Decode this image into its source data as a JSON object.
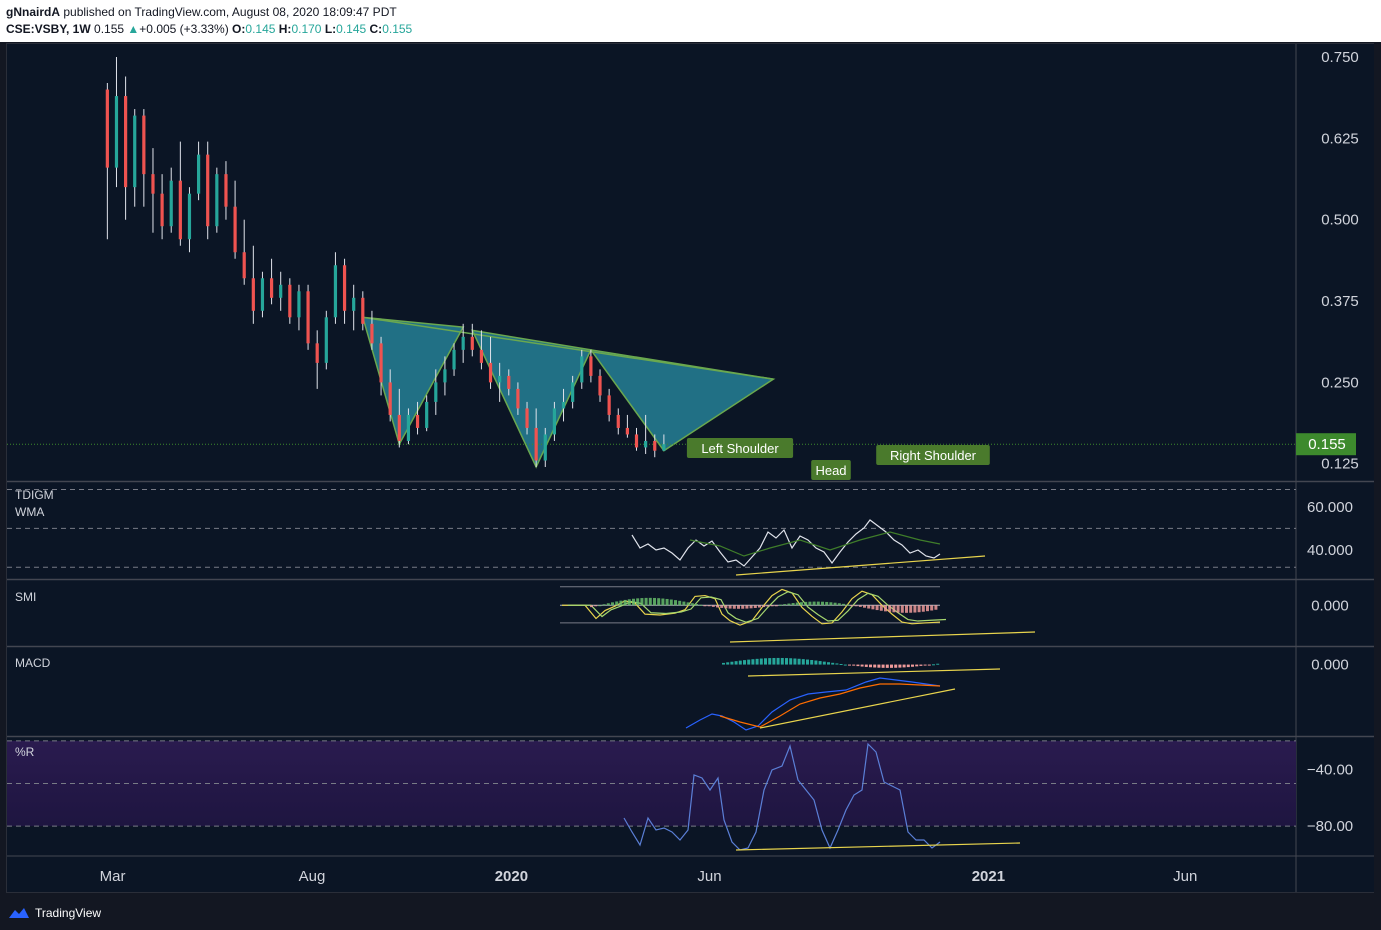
{
  "header": {
    "author": "gNnairdA",
    "published_text": "published on TradingView.com, August 08, 2020 18:09:47 PDT",
    "symbol": "CSE:VSBY, 1W",
    "last": "0.155",
    "change": "+0.005 (+3.33%)",
    "o_label": "O:",
    "o": "0.145",
    "h_label": "H:",
    "h": "0.170",
    "l_label": "L:",
    "l": "0.145",
    "c_label": "C:",
    "c": "0.155"
  },
  "footer": {
    "brand": "TradingView"
  },
  "colors": {
    "up": "#26a69a",
    "down": "#ef5350",
    "pattern_fill": "#2a8fa6",
    "trend": "#e8d44d",
    "label_bg": "#4a7a2c",
    "price_tag": "#3d8a2d"
  },
  "chart_data": {
    "type": "candlestick",
    "x_ticks": [
      {
        "date": "2019-03-01",
        "label": "Mar",
        "bold": false
      },
      {
        "date": "2019-08-01",
        "label": "Aug",
        "bold": false
      },
      {
        "date": "2020-01-01",
        "label": "2020",
        "bold": true
      },
      {
        "date": "2020-06-01",
        "label": "Jun",
        "bold": false
      },
      {
        "date": "2021-01-01",
        "label": "2021",
        "bold": true
      },
      {
        "date": "2021-06-01",
        "label": "Jun",
        "bold": false
      }
    ],
    "x_range": [
      "2018-12-10",
      "2021-08-25"
    ],
    "price": {
      "ylim": [
        0.1,
        0.77
      ],
      "ticks": [
        "0.750",
        "0.625",
        "0.500",
        "0.375",
        "0.250",
        "0.125"
      ],
      "tick_values": [
        0.75,
        0.625,
        0.5,
        0.375,
        0.25,
        0.125
      ],
      "last_price": "0.155",
      "last_value": 0.155,
      "candles": [
        [
          "2019-02-25",
          0.7,
          0.71,
          0.47,
          0.58
        ],
        [
          "2019-03-04",
          0.58,
          0.75,
          0.55,
          0.69
        ],
        [
          "2019-03-11",
          0.69,
          0.72,
          0.5,
          0.55
        ],
        [
          "2019-03-18",
          0.55,
          0.67,
          0.52,
          0.66
        ],
        [
          "2019-03-25",
          0.66,
          0.67,
          0.52,
          0.57
        ],
        [
          "2019-04-01",
          0.57,
          0.61,
          0.48,
          0.54
        ],
        [
          "2019-04-08",
          0.54,
          0.57,
          0.47,
          0.49
        ],
        [
          "2019-04-15",
          0.49,
          0.58,
          0.48,
          0.56
        ],
        [
          "2019-04-22",
          0.56,
          0.62,
          0.46,
          0.47
        ],
        [
          "2019-04-29",
          0.47,
          0.55,
          0.45,
          0.54
        ],
        [
          "2019-05-06",
          0.54,
          0.62,
          0.53,
          0.6
        ],
        [
          "2019-05-13",
          0.6,
          0.62,
          0.47,
          0.49
        ],
        [
          "2019-05-20",
          0.49,
          0.58,
          0.48,
          0.57
        ],
        [
          "2019-05-27",
          0.57,
          0.59,
          0.5,
          0.52
        ],
        [
          "2019-06-03",
          0.52,
          0.56,
          0.44,
          0.45
        ],
        [
          "2019-06-10",
          0.45,
          0.5,
          0.4,
          0.41
        ],
        [
          "2019-06-17",
          0.41,
          0.46,
          0.34,
          0.36
        ],
        [
          "2019-06-24",
          0.36,
          0.42,
          0.35,
          0.41
        ],
        [
          "2019-07-01",
          0.41,
          0.44,
          0.37,
          0.38
        ],
        [
          "2019-07-08",
          0.38,
          0.42,
          0.36,
          0.4
        ],
        [
          "2019-07-15",
          0.4,
          0.41,
          0.34,
          0.35
        ],
        [
          "2019-07-22",
          0.35,
          0.4,
          0.33,
          0.39
        ],
        [
          "2019-07-29",
          0.39,
          0.4,
          0.3,
          0.31
        ],
        [
          "2019-08-05",
          0.31,
          0.33,
          0.24,
          0.28
        ],
        [
          "2019-08-12",
          0.28,
          0.36,
          0.27,
          0.35
        ],
        [
          "2019-08-19",
          0.35,
          0.45,
          0.34,
          0.43
        ],
        [
          "2019-08-26",
          0.43,
          0.44,
          0.34,
          0.36
        ],
        [
          "2019-09-02",
          0.36,
          0.4,
          0.33,
          0.38
        ],
        [
          "2019-09-09",
          0.38,
          0.39,
          0.33,
          0.34
        ],
        [
          "2019-09-16",
          0.34,
          0.36,
          0.3,
          0.31
        ],
        [
          "2019-09-23",
          0.31,
          0.32,
          0.23,
          0.25
        ],
        [
          "2019-09-30",
          0.25,
          0.27,
          0.19,
          0.2
        ],
        [
          "2019-10-07",
          0.2,
          0.24,
          0.15,
          0.16
        ],
        [
          "2019-10-14",
          0.16,
          0.21,
          0.155,
          0.2
        ],
        [
          "2019-10-21",
          0.2,
          0.22,
          0.17,
          0.18
        ],
        [
          "2019-10-28",
          0.18,
          0.23,
          0.175,
          0.22
        ],
        [
          "2019-11-04",
          0.22,
          0.27,
          0.2,
          0.25
        ],
        [
          "2019-11-11",
          0.25,
          0.29,
          0.23,
          0.27
        ],
        [
          "2019-11-18",
          0.27,
          0.31,
          0.26,
          0.3
        ],
        [
          "2019-11-25",
          0.3,
          0.34,
          0.28,
          0.32
        ],
        [
          "2019-12-02",
          0.32,
          0.34,
          0.29,
          0.3
        ],
        [
          "2019-12-09",
          0.3,
          0.33,
          0.27,
          0.28
        ],
        [
          "2019-12-16",
          0.28,
          0.32,
          0.24,
          0.25
        ],
        [
          "2019-12-23",
          0.25,
          0.28,
          0.22,
          0.26
        ],
        [
          "2019-12-30",
          0.26,
          0.27,
          0.23,
          0.24
        ],
        [
          "2020-01-06",
          0.24,
          0.25,
          0.2,
          0.21
        ],
        [
          "2020-01-13",
          0.21,
          0.22,
          0.17,
          0.18
        ],
        [
          "2020-01-20",
          0.18,
          0.21,
          0.12,
          0.13
        ],
        [
          "2020-01-27",
          0.13,
          0.18,
          0.12,
          0.17
        ],
        [
          "2020-02-03",
          0.17,
          0.22,
          0.16,
          0.21
        ],
        [
          "2020-02-10",
          0.21,
          0.24,
          0.19,
          0.22
        ],
        [
          "2020-02-17",
          0.22,
          0.26,
          0.21,
          0.25
        ],
        [
          "2020-02-24",
          0.25,
          0.3,
          0.24,
          0.29
        ],
        [
          "2020-03-02",
          0.29,
          0.3,
          0.25,
          0.26
        ],
        [
          "2020-03-09",
          0.26,
          0.27,
          0.22,
          0.23
        ],
        [
          "2020-03-16",
          0.23,
          0.24,
          0.19,
          0.2
        ],
        [
          "2020-03-23",
          0.2,
          0.21,
          0.17,
          0.18
        ],
        [
          "2020-03-30",
          0.18,
          0.2,
          0.165,
          0.17
        ],
        [
          "2020-04-06",
          0.17,
          0.18,
          0.145,
          0.15
        ],
        [
          "2020-04-13",
          0.15,
          0.2,
          0.14,
          0.16
        ],
        [
          "2020-04-20",
          0.16,
          0.17,
          0.135,
          0.145
        ],
        [
          "2020-04-27",
          0.145,
          0.17,
          0.145,
          0.155
        ]
      ]
    },
    "panels": [
      {
        "name": "TDIGM",
        "name2": "WMA",
        "ticks": [
          "60.000",
          "40.000"
        ],
        "tick_values": [
          60,
          40
        ],
        "ylim": [
          27,
          71
        ]
      },
      {
        "name": "SMI",
        "ticks": [
          "0.000"
        ],
        "tick_values": [
          0
        ],
        "ylim": [
          -90,
          55
        ]
      },
      {
        "name": "MACD",
        "ticks": [
          "0.000"
        ],
        "tick_values": [
          0
        ],
        "ylim": [
          -0.17,
          0.04
        ]
      },
      {
        "name": "%R",
        "ticks": [
          "−40.00",
          "−80.00"
        ],
        "tick_values": [
          -40,
          -80
        ],
        "ylim": [
          -101,
          -18
        ]
      }
    ],
    "annotations": [
      "Left Shoulder",
      "Head",
      "Right Shoulder"
    ]
  }
}
